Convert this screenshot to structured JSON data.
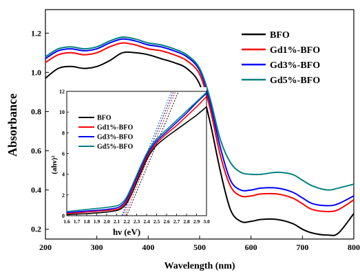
{
  "chart_data": [
    {
      "type": "line",
      "xlabel": "Wavelength (nm)",
      "ylabel": "Absorbance",
      "xlim": [
        200,
        800
      ],
      "ylim": [
        0.15,
        1.32
      ],
      "xticks": [
        200,
        300,
        400,
        500,
        600,
        700,
        800
      ],
      "yticks": [
        0.2,
        0.4,
        0.6,
        0.8,
        1.0,
        1.2
      ],
      "ytick_labels": [
        "0.2",
        "0.4",
        "0.6",
        "0.8",
        "1.0",
        "1.2"
      ],
      "legend_position": "top-right",
      "series": [
        {
          "name": "BFO",
          "color": "#000000",
          "x": [
            200,
            225,
            250,
            275,
            300,
            325,
            350,
            375,
            400,
            425,
            450,
            475,
            500,
            520,
            540,
            560,
            580,
            600,
            620,
            650,
            680,
            700,
            720,
            750,
            770,
            800
          ],
          "y": [
            0.97,
            1.02,
            1.03,
            1.02,
            1.03,
            1.06,
            1.1,
            1.1,
            1.09,
            1.07,
            1.05,
            1.02,
            0.94,
            0.75,
            0.5,
            0.3,
            0.24,
            0.24,
            0.25,
            0.25,
            0.23,
            0.2,
            0.18,
            0.17,
            0.18,
            0.28
          ]
        },
        {
          "name": "Gd1%-BFO",
          "color": "#ff0000",
          "x": [
            200,
            225,
            250,
            275,
            300,
            325,
            350,
            375,
            400,
            425,
            450,
            475,
            500,
            520,
            540,
            560,
            580,
            600,
            620,
            650,
            680,
            700,
            720,
            750,
            770,
            800
          ],
          "y": [
            1.05,
            1.09,
            1.1,
            1.09,
            1.1,
            1.13,
            1.15,
            1.14,
            1.12,
            1.11,
            1.09,
            1.06,
            0.99,
            0.82,
            0.58,
            0.42,
            0.37,
            0.37,
            0.38,
            0.38,
            0.36,
            0.33,
            0.3,
            0.29,
            0.3,
            0.35
          ]
        },
        {
          "name": "Gd3%-BFO",
          "color": "#0000ff",
          "x": [
            200,
            225,
            250,
            275,
            300,
            325,
            350,
            375,
            400,
            425,
            450,
            475,
            500,
            520,
            540,
            560,
            580,
            600,
            620,
            650,
            680,
            700,
            720,
            750,
            770,
            800
          ],
          "y": [
            1.07,
            1.11,
            1.12,
            1.11,
            1.12,
            1.15,
            1.17,
            1.16,
            1.14,
            1.13,
            1.11,
            1.08,
            1.01,
            0.85,
            0.62,
            0.45,
            0.4,
            0.4,
            0.41,
            0.41,
            0.39,
            0.36,
            0.33,
            0.32,
            0.33,
            0.37
          ]
        },
        {
          "name": "Gd5%-BFO",
          "color": "#008080",
          "x": [
            200,
            225,
            250,
            275,
            300,
            325,
            350,
            375,
            400,
            425,
            450,
            475,
            500,
            520,
            540,
            560,
            580,
            600,
            620,
            650,
            680,
            700,
            720,
            750,
            770,
            800
          ],
          "y": [
            1.08,
            1.12,
            1.13,
            1.12,
            1.13,
            1.16,
            1.18,
            1.17,
            1.15,
            1.14,
            1.12,
            1.09,
            1.02,
            0.87,
            0.66,
            0.54,
            0.49,
            0.48,
            0.48,
            0.49,
            0.48,
            0.45,
            0.42,
            0.4,
            0.41,
            0.43
          ]
        }
      ]
    },
    {
      "type": "line",
      "inset": true,
      "xlabel": "hν (eV)",
      "ylabel": "(ahν)²",
      "xlim": [
        1.6,
        3.0
      ],
      "ylim": [
        0,
        12
      ],
      "xticks": [
        1.6,
        1.7,
        1.8,
        1.9,
        2.0,
        2.1,
        2.2,
        2.3,
        2.4,
        2.5,
        2.6,
        2.7,
        2.8,
        2.9,
        3.0
      ],
      "xtick_labels": [
        "1.6",
        "1.7",
        "1.8",
        "1.9",
        "2.0",
        "2.1",
        "2.2",
        "2.3",
        "2.4",
        "2.5",
        "2.6",
        "2.7",
        "2.8",
        "2.9",
        "3.0"
      ],
      "yticks": [
        0,
        2,
        4,
        6,
        8,
        10,
        12
      ],
      "legend_position": "top-left",
      "series": [
        {
          "name": "BFO",
          "color": "#000000",
          "x": [
            1.6,
            1.8,
            2.0,
            2.1,
            2.15,
            2.2,
            2.25,
            2.3,
            2.35,
            2.4,
            2.45,
            2.5,
            2.6,
            2.7,
            2.8,
            2.9,
            3.0
          ],
          "y": [
            0.1,
            0.2,
            0.35,
            0.5,
            0.7,
            1.2,
            2.1,
            3.2,
            4.3,
            5.4,
            6.2,
            6.8,
            7.6,
            8.3,
            9.0,
            9.7,
            10.5
          ]
        },
        {
          "name": "Gd1%-BFO",
          "color": "#ff0000",
          "x": [
            1.6,
            1.8,
            2.0,
            2.1,
            2.15,
            2.2,
            2.25,
            2.3,
            2.35,
            2.4,
            2.45,
            2.5,
            2.6,
            2.7,
            2.8,
            2.9,
            3.0
          ],
          "y": [
            0.2,
            0.35,
            0.5,
            0.6,
            0.85,
            1.4,
            2.4,
            3.5,
            4.6,
            5.6,
            6.4,
            7.0,
            7.9,
            8.7,
            9.6,
            10.5,
            11.5
          ]
        },
        {
          "name": "Gd3%-BFO",
          "color": "#0000ff",
          "x": [
            1.6,
            1.8,
            2.0,
            2.1,
            2.15,
            2.2,
            2.25,
            2.3,
            2.35,
            2.4,
            2.45,
            2.5,
            2.6,
            2.7,
            2.8,
            2.9,
            3.0
          ],
          "y": [
            0.3,
            0.45,
            0.6,
            0.75,
            1.0,
            1.6,
            2.6,
            3.7,
            4.8,
            5.8,
            6.6,
            7.2,
            8.1,
            9.0,
            9.9,
            10.9,
            11.8
          ]
        },
        {
          "name": "Gd5%-BFO",
          "color": "#008080",
          "x": [
            1.6,
            1.8,
            2.0,
            2.1,
            2.15,
            2.2,
            2.25,
            2.3,
            2.35,
            2.4,
            2.45,
            2.5,
            2.6,
            2.7,
            2.8,
            2.9,
            3.0
          ],
          "y": [
            0.4,
            0.6,
            0.8,
            0.95,
            1.2,
            1.8,
            2.8,
            3.9,
            5.0,
            6.0,
            6.8,
            7.4,
            8.3,
            9.2,
            10.1,
            11.0,
            11.9
          ]
        }
      ],
      "tangent_lines": [
        {
          "color": "#000000",
          "x": [
            2.2,
            2.72
          ],
          "y": [
            0,
            12
          ]
        },
        {
          "color": "#ff0000",
          "x": [
            2.18,
            2.69
          ],
          "y": [
            0,
            12
          ]
        },
        {
          "color": "#0000ff",
          "x": [
            2.16,
            2.67
          ],
          "y": [
            0,
            12
          ]
        },
        {
          "color": "#008080",
          "x": [
            2.15,
            2.65
          ],
          "y": [
            0,
            12
          ]
        }
      ]
    }
  ]
}
